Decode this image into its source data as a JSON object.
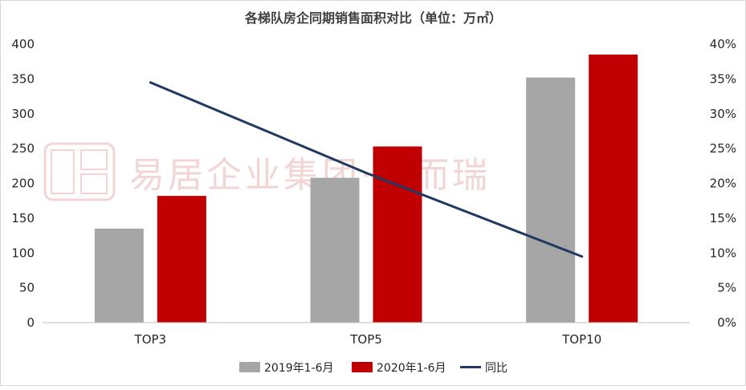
{
  "chart_data": {
    "type": "bar",
    "title": "各梯队房企同期销售面积对比（单位：万㎡）",
    "categories": [
      "TOP3",
      "TOP5",
      "TOP10"
    ],
    "series": [
      {
        "name": "2019年1-6月",
        "kind": "bar",
        "axis": "left",
        "color": "#a6a6a6",
        "values": [
          135,
          208,
          352
        ]
      },
      {
        "name": "2020年1-6月",
        "kind": "bar",
        "axis": "left",
        "color": "#c00000",
        "values": [
          182,
          253,
          385
        ]
      },
      {
        "name": "同比",
        "kind": "line",
        "axis": "right",
        "color": "#203864",
        "values": [
          0.345,
          0.215,
          0.095
        ]
      }
    ],
    "ylim": [
      0,
      400
    ],
    "y_ticks": [
      "0",
      "50",
      "100",
      "150",
      "200",
      "250",
      "300",
      "350",
      "400"
    ],
    "y2lim": [
      0,
      0.4
    ],
    "y2_ticks": [
      "0%",
      "5%",
      "10%",
      "15%",
      "20%",
      "25%",
      "30%",
      "35%",
      "40%"
    ],
    "legend_position": "bottom",
    "grid": false
  },
  "watermark": "易居企业集团·克而瑞"
}
